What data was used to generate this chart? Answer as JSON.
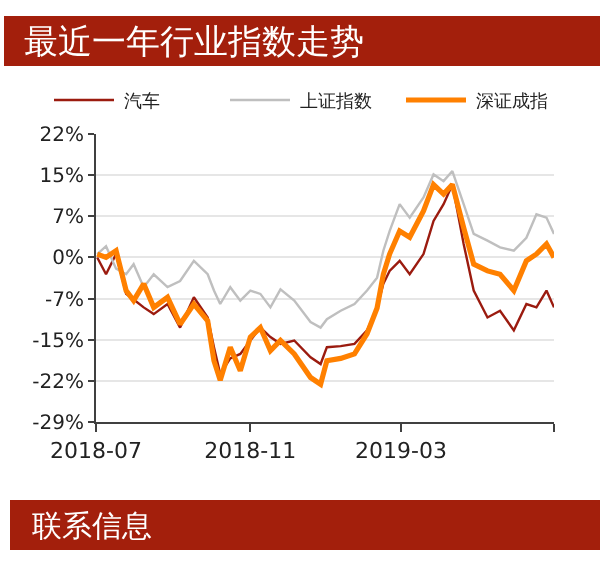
{
  "chart_data": {
    "type": "line",
    "title": "最近一年行业指数走势",
    "x": [
      "2018-07-02",
      "2018-07-09",
      "2018-07-17",
      "2018-07-25",
      "2018-07-31",
      "2018-08-08",
      "2018-08-16",
      "2018-08-27",
      "2018-09-06",
      "2018-09-17",
      "2018-09-28",
      "2018-10-03",
      "2018-10-08",
      "2018-10-16",
      "2018-10-24",
      "2018-11-01",
      "2018-11-09",
      "2018-11-17",
      "2018-11-25",
      "2018-12-06",
      "2018-12-19",
      "2018-12-27",
      "2019-01-01",
      "2019-01-12",
      "2019-01-23",
      "2019-02-02",
      "2019-02-10",
      "2019-02-15",
      "2019-02-20",
      "2019-02-28",
      "2019-03-08",
      "2019-03-19",
      "2019-03-27",
      "2019-04-04",
      "2019-04-11",
      "2019-04-20",
      "2019-04-28",
      "2019-05-09",
      "2019-05-19",
      "2019-05-30",
      "2019-06-09",
      "2019-06-17",
      "2019-06-25",
      "2019-07-01"
    ],
    "series": [
      {
        "name": "汽车",
        "color": "#9b1b0f",
        "values": [
          0,
          -3,
          0.6,
          -6.5,
          -7.5,
          -8.9,
          -10.1,
          -8.3,
          -12.5,
          -7.1,
          -10.7,
          -16,
          -20.8,
          -18,
          -17.2,
          -14.8,
          -12.5,
          -14.2,
          -15.4,
          -14.8,
          -17.8,
          -19,
          -16,
          -15.8,
          -15.4,
          -13,
          -9,
          -4.7,
          -2.4,
          -0.6,
          -3,
          0.6,
          6.5,
          9.5,
          13,
          2.4,
          -5.9,
          -10.7,
          -9.5,
          -13,
          -8.3,
          -8.9,
          -5.9,
          -8.9
        ]
      },
      {
        "name": "上证指数",
        "color": "#bfbfbf",
        "values": [
          0.6,
          2,
          -2,
          -3,
          -1.2,
          -5.3,
          -3,
          -5.3,
          -4.2,
          -0.6,
          -3,
          -5.9,
          -8.3,
          -5.3,
          -7.7,
          -5.9,
          -6.5,
          -8.9,
          -5.7,
          -7.7,
          -11.5,
          -12.5,
          -11,
          -9.5,
          -8.3,
          -5.9,
          -3.6,
          1.2,
          4.7,
          9.5,
          7.1,
          10.7,
          14.8,
          13.6,
          15.4,
          9.5,
          4.2,
          3,
          1.8,
          1.2,
          3.5,
          7.7,
          7.1,
          4.2
        ]
      },
      {
        "name": "深证成指",
        "color": "#ff8000",
        "values": [
          0.6,
          0,
          1.2,
          -5.9,
          -7.7,
          -4.7,
          -8.9,
          -7.1,
          -11.9,
          -8.3,
          -11.3,
          -18.4,
          -21.9,
          -16,
          -20.2,
          -14.2,
          -12.5,
          -16.6,
          -14.8,
          -17.2,
          -21.4,
          -22.6,
          -18.4,
          -18,
          -17.2,
          -13.6,
          -9,
          -3,
          0.6,
          4.7,
          3.6,
          8.3,
          13,
          11.3,
          13,
          5.3,
          -1.2,
          -2.4,
          -3,
          -5.9,
          -0.6,
          0.6,
          2.4,
          0
        ]
      }
    ],
    "xlim": [
      "2018-07-01",
      "2019-07-01"
    ],
    "xticks": [
      {
        "value": "2018-07-01",
        "label": "2018-07"
      },
      {
        "value": "2018-11-01",
        "label": "2018-11"
      },
      {
        "value": "2019-03-01",
        "label": "2019-03"
      },
      {
        "value": "2019-07-01",
        "label": null
      }
    ],
    "ylim": [
      -29.33,
      22
    ],
    "yticks": [
      {
        "value": -29.33,
        "label": "-29%"
      },
      {
        "value": -22,
        "label": "-22%"
      },
      {
        "value": -14.67,
        "label": "-15%"
      },
      {
        "value": -7.33,
        "label": "-7%"
      },
      {
        "value": 0,
        "label": "0%"
      },
      {
        "value": 7.33,
        "label": "7%"
      },
      {
        "value": 14.67,
        "label": "15%"
      },
      {
        "value": 22,
        "label": "22%"
      }
    ],
    "grid": "y",
    "legend": "top",
    "marker": "none",
    "line_style": "solid",
    "annotations": [
      "联系信息"
    ]
  }
}
